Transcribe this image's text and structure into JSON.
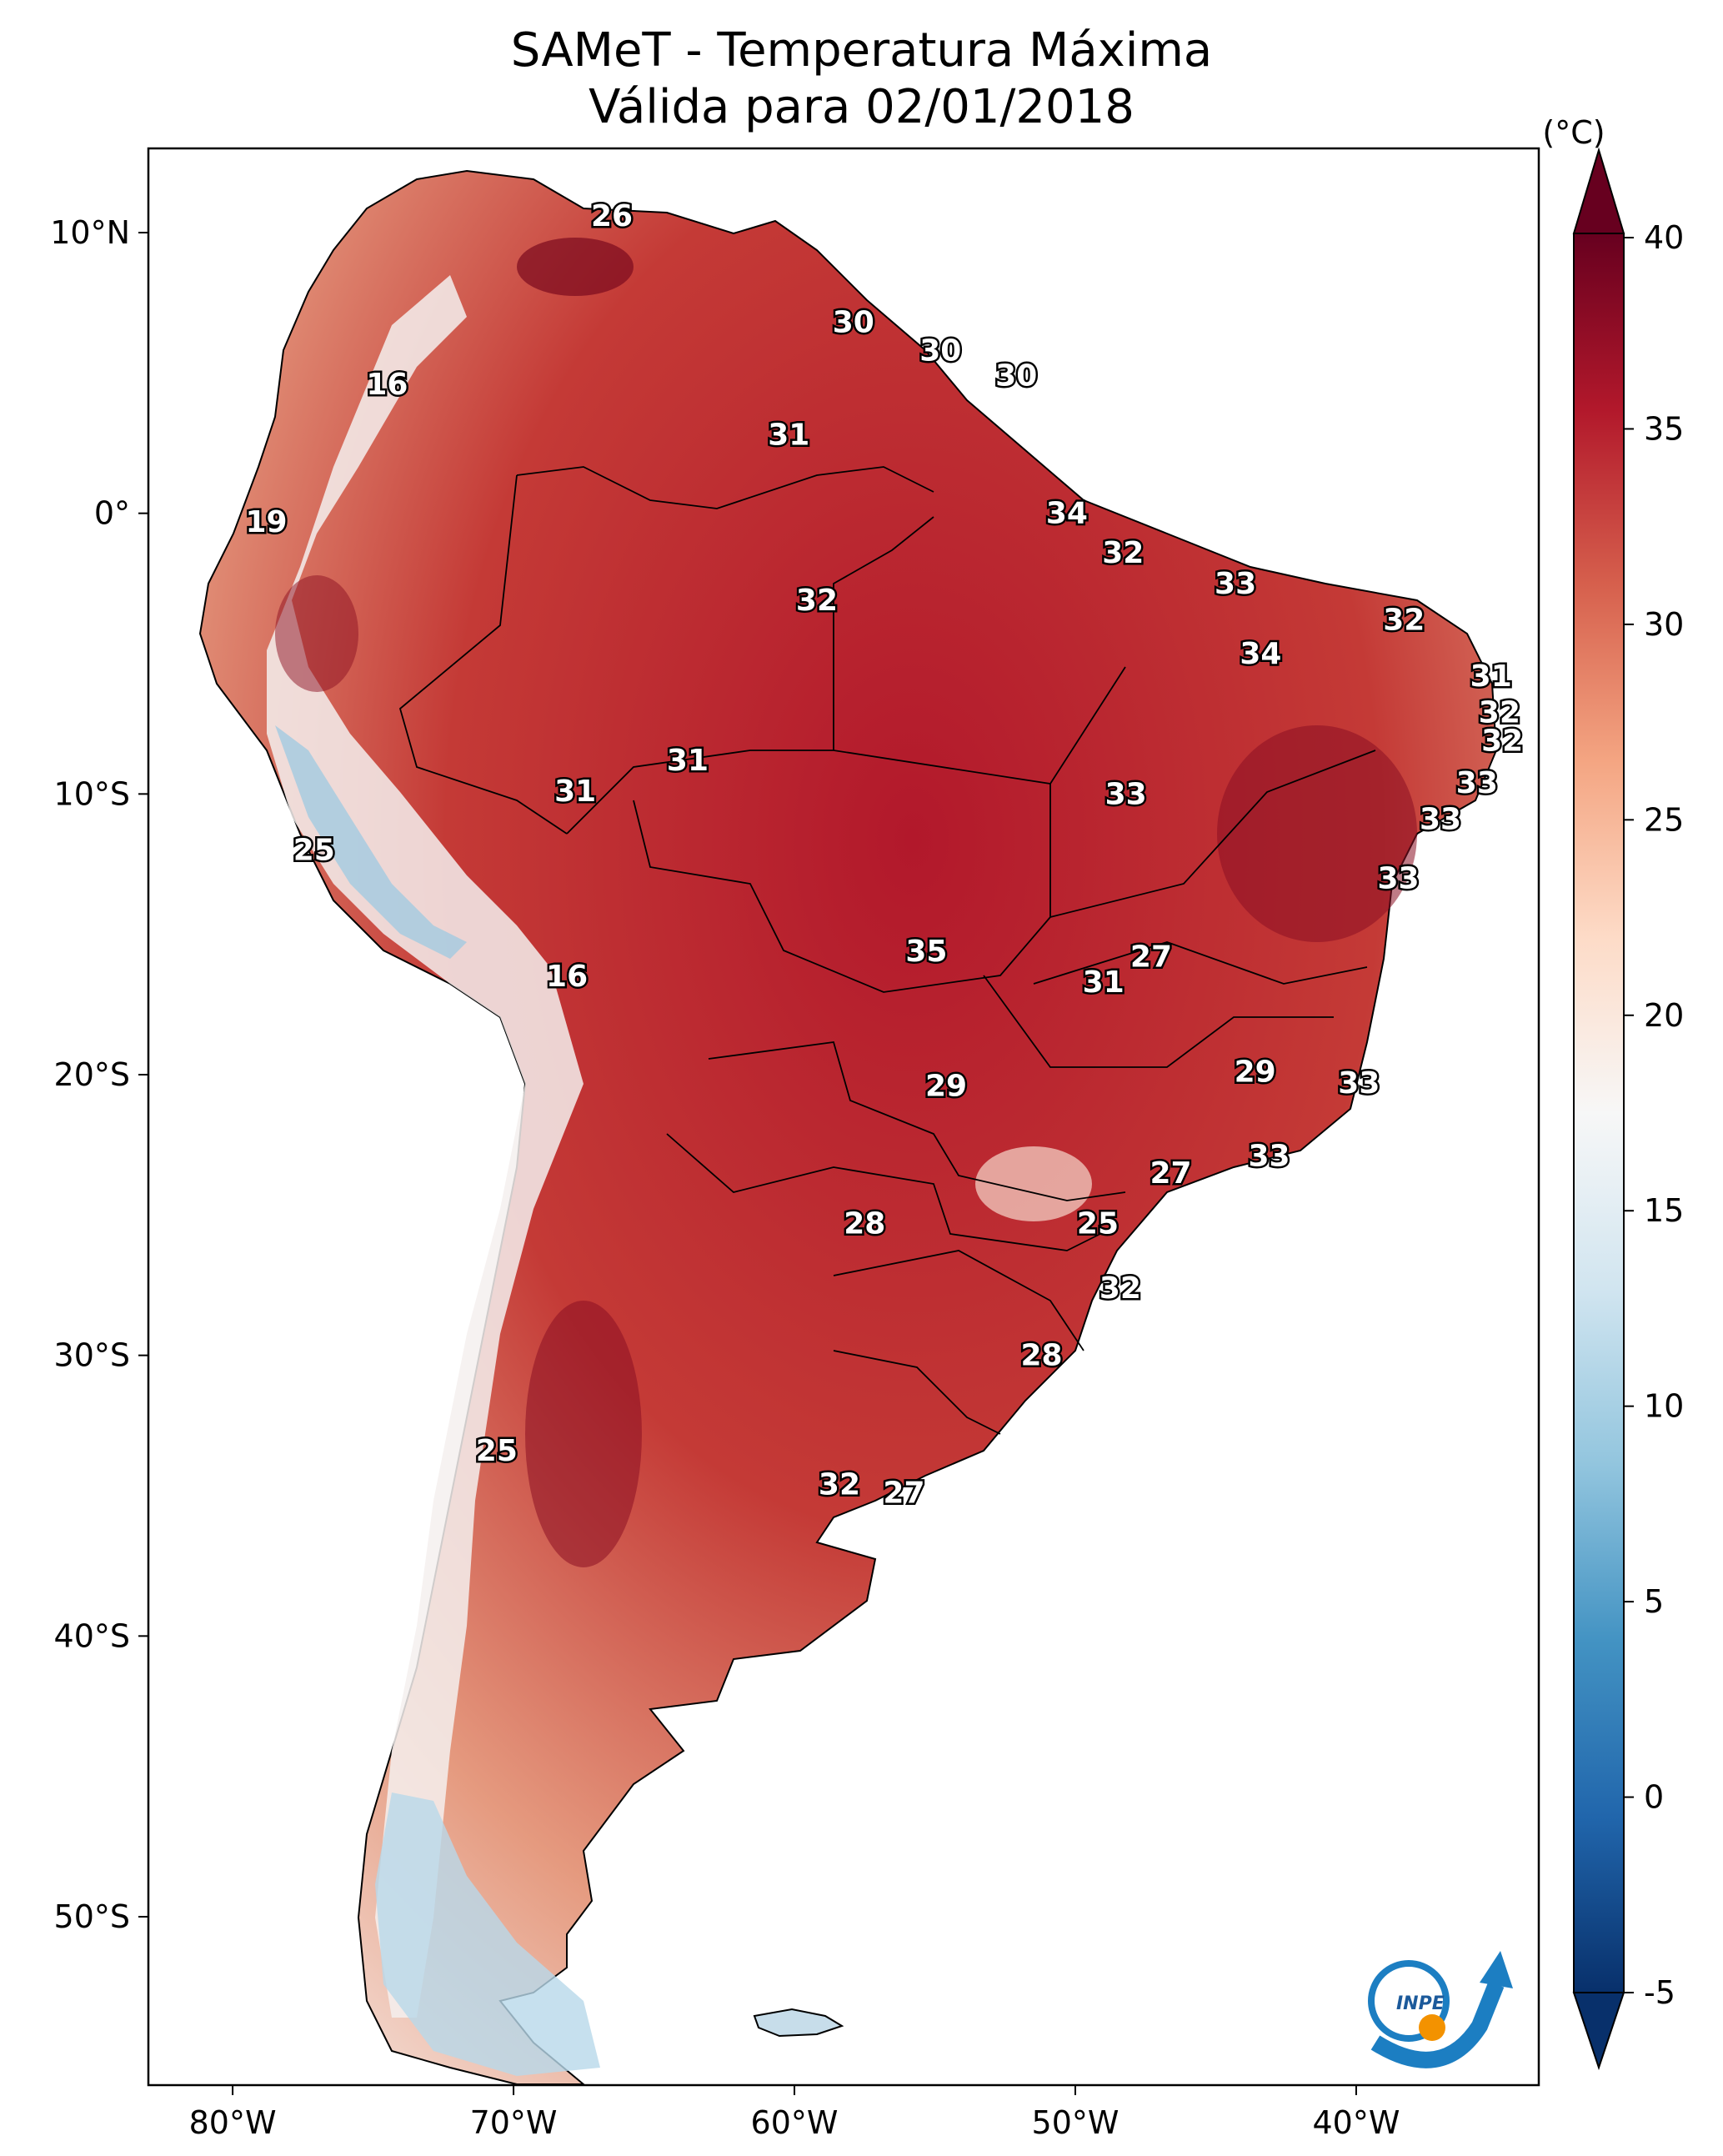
{
  "title": {
    "line1": "SAMeT - Temperatura Máxima",
    "line2": "Válida para 02/01/2018"
  },
  "map": {
    "lon_range": [
      -83,
      -33.5
    ],
    "lat_range": [
      -56,
      13
    ],
    "lon_ticks": [
      {
        "lon": -80,
        "label": "80°W"
      },
      {
        "lon": -70,
        "label": "70°W"
      },
      {
        "lon": -60,
        "label": "60°W"
      },
      {
        "lon": -50,
        "label": "50°W"
      },
      {
        "lon": -40,
        "label": "40°W"
      }
    ],
    "lat_ticks": [
      {
        "lat": 10,
        "label": "10°N"
      },
      {
        "lat": 0,
        "label": "0°"
      },
      {
        "lat": -10,
        "label": "10°S"
      },
      {
        "lat": -20,
        "label": "20°S"
      },
      {
        "lat": -30,
        "label": "30°S"
      },
      {
        "lat": -40,
        "label": "40°S"
      },
      {
        "lat": -50,
        "label": "50°S"
      }
    ]
  },
  "colorbar": {
    "unit": "(°C)",
    "min": -5,
    "max": 40,
    "ticks": [
      {
        "v": 40,
        "label": "40"
      },
      {
        "v": 35,
        "label": "35"
      },
      {
        "v": 30,
        "label": "30"
      },
      {
        "v": 25,
        "label": "25"
      },
      {
        "v": 20,
        "label": "20"
      },
      {
        "v": 15,
        "label": "15"
      },
      {
        "v": 10,
        "label": "10"
      },
      {
        "v": 5,
        "label": "5"
      },
      {
        "v": 0,
        "label": "0"
      },
      {
        "v": -5,
        "label": "-5"
      }
    ],
    "colors": [
      "#08306b",
      "#2166ac",
      "#4393c3",
      "#92c5de",
      "#d1e5f0",
      "#f7f7f7",
      "#fddbc7",
      "#f4a582",
      "#d6604d",
      "#b2182b",
      "#67001f"
    ]
  },
  "labels": [
    {
      "lon": -66.5,
      "lat": 10.6,
      "text": "26"
    },
    {
      "lon": -74.5,
      "lat": 4.6,
      "text": "16"
    },
    {
      "lon": -78.8,
      "lat": -0.3,
      "text": "19"
    },
    {
      "lon": -57.9,
      "lat": 6.8,
      "text": "30"
    },
    {
      "lon": -54.8,
      "lat": 5.8,
      "text": "30"
    },
    {
      "lon": -52.1,
      "lat": 4.9,
      "text": "30"
    },
    {
      "lon": -60.2,
      "lat": 2.8,
      "text": "31"
    },
    {
      "lon": -50.3,
      "lat": 0.0,
      "text": "34"
    },
    {
      "lon": -59.2,
      "lat": -3.1,
      "text": "32"
    },
    {
      "lon": -48.3,
      "lat": -1.4,
      "text": "32"
    },
    {
      "lon": -44.3,
      "lat": -2.5,
      "text": "33"
    },
    {
      "lon": -38.3,
      "lat": -3.8,
      "text": "32"
    },
    {
      "lon": -43.4,
      "lat": -5.0,
      "text": "34"
    },
    {
      "lon": -35.2,
      "lat": -5.8,
      "text": "31"
    },
    {
      "lon": -34.9,
      "lat": -7.1,
      "text": "32"
    },
    {
      "lon": -34.8,
      "lat": -8.1,
      "text": "32"
    },
    {
      "lon": -35.7,
      "lat": -9.6,
      "text": "33"
    },
    {
      "lon": -37.0,
      "lat": -10.9,
      "text": "33"
    },
    {
      "lon": -38.5,
      "lat": -13.0,
      "text": "33"
    },
    {
      "lon": -63.8,
      "lat": -8.8,
      "text": "31"
    },
    {
      "lon": -67.8,
      "lat": -9.9,
      "text": "31"
    },
    {
      "lon": -48.2,
      "lat": -10.0,
      "text": "33"
    },
    {
      "lon": -77.1,
      "lat": -12.0,
      "text": "25"
    },
    {
      "lon": -68.1,
      "lat": -16.5,
      "text": "16"
    },
    {
      "lon": -55.3,
      "lat": -15.6,
      "text": "35"
    },
    {
      "lon": -47.3,
      "lat": -15.8,
      "text": "27"
    },
    {
      "lon": -49.0,
      "lat": -16.7,
      "text": "31"
    },
    {
      "lon": -54.6,
      "lat": -20.4,
      "text": "29"
    },
    {
      "lon": -43.6,
      "lat": -19.9,
      "text": "29"
    },
    {
      "lon": -39.9,
      "lat": -20.3,
      "text": "33"
    },
    {
      "lon": -43.1,
      "lat": -22.9,
      "text": "33"
    },
    {
      "lon": -46.6,
      "lat": -23.5,
      "text": "27"
    },
    {
      "lon": -57.5,
      "lat": -25.3,
      "text": "28"
    },
    {
      "lon": -49.2,
      "lat": -25.3,
      "text": "25"
    },
    {
      "lon": -48.4,
      "lat": -27.6,
      "text": "32"
    },
    {
      "lon": -51.2,
      "lat": -30.0,
      "text": "28"
    },
    {
      "lon": -70.6,
      "lat": -33.4,
      "text": "25"
    },
    {
      "lon": -58.4,
      "lat": -34.6,
      "text": "32"
    },
    {
      "lon": -56.1,
      "lat": -34.9,
      "text": "27"
    }
  ]
}
